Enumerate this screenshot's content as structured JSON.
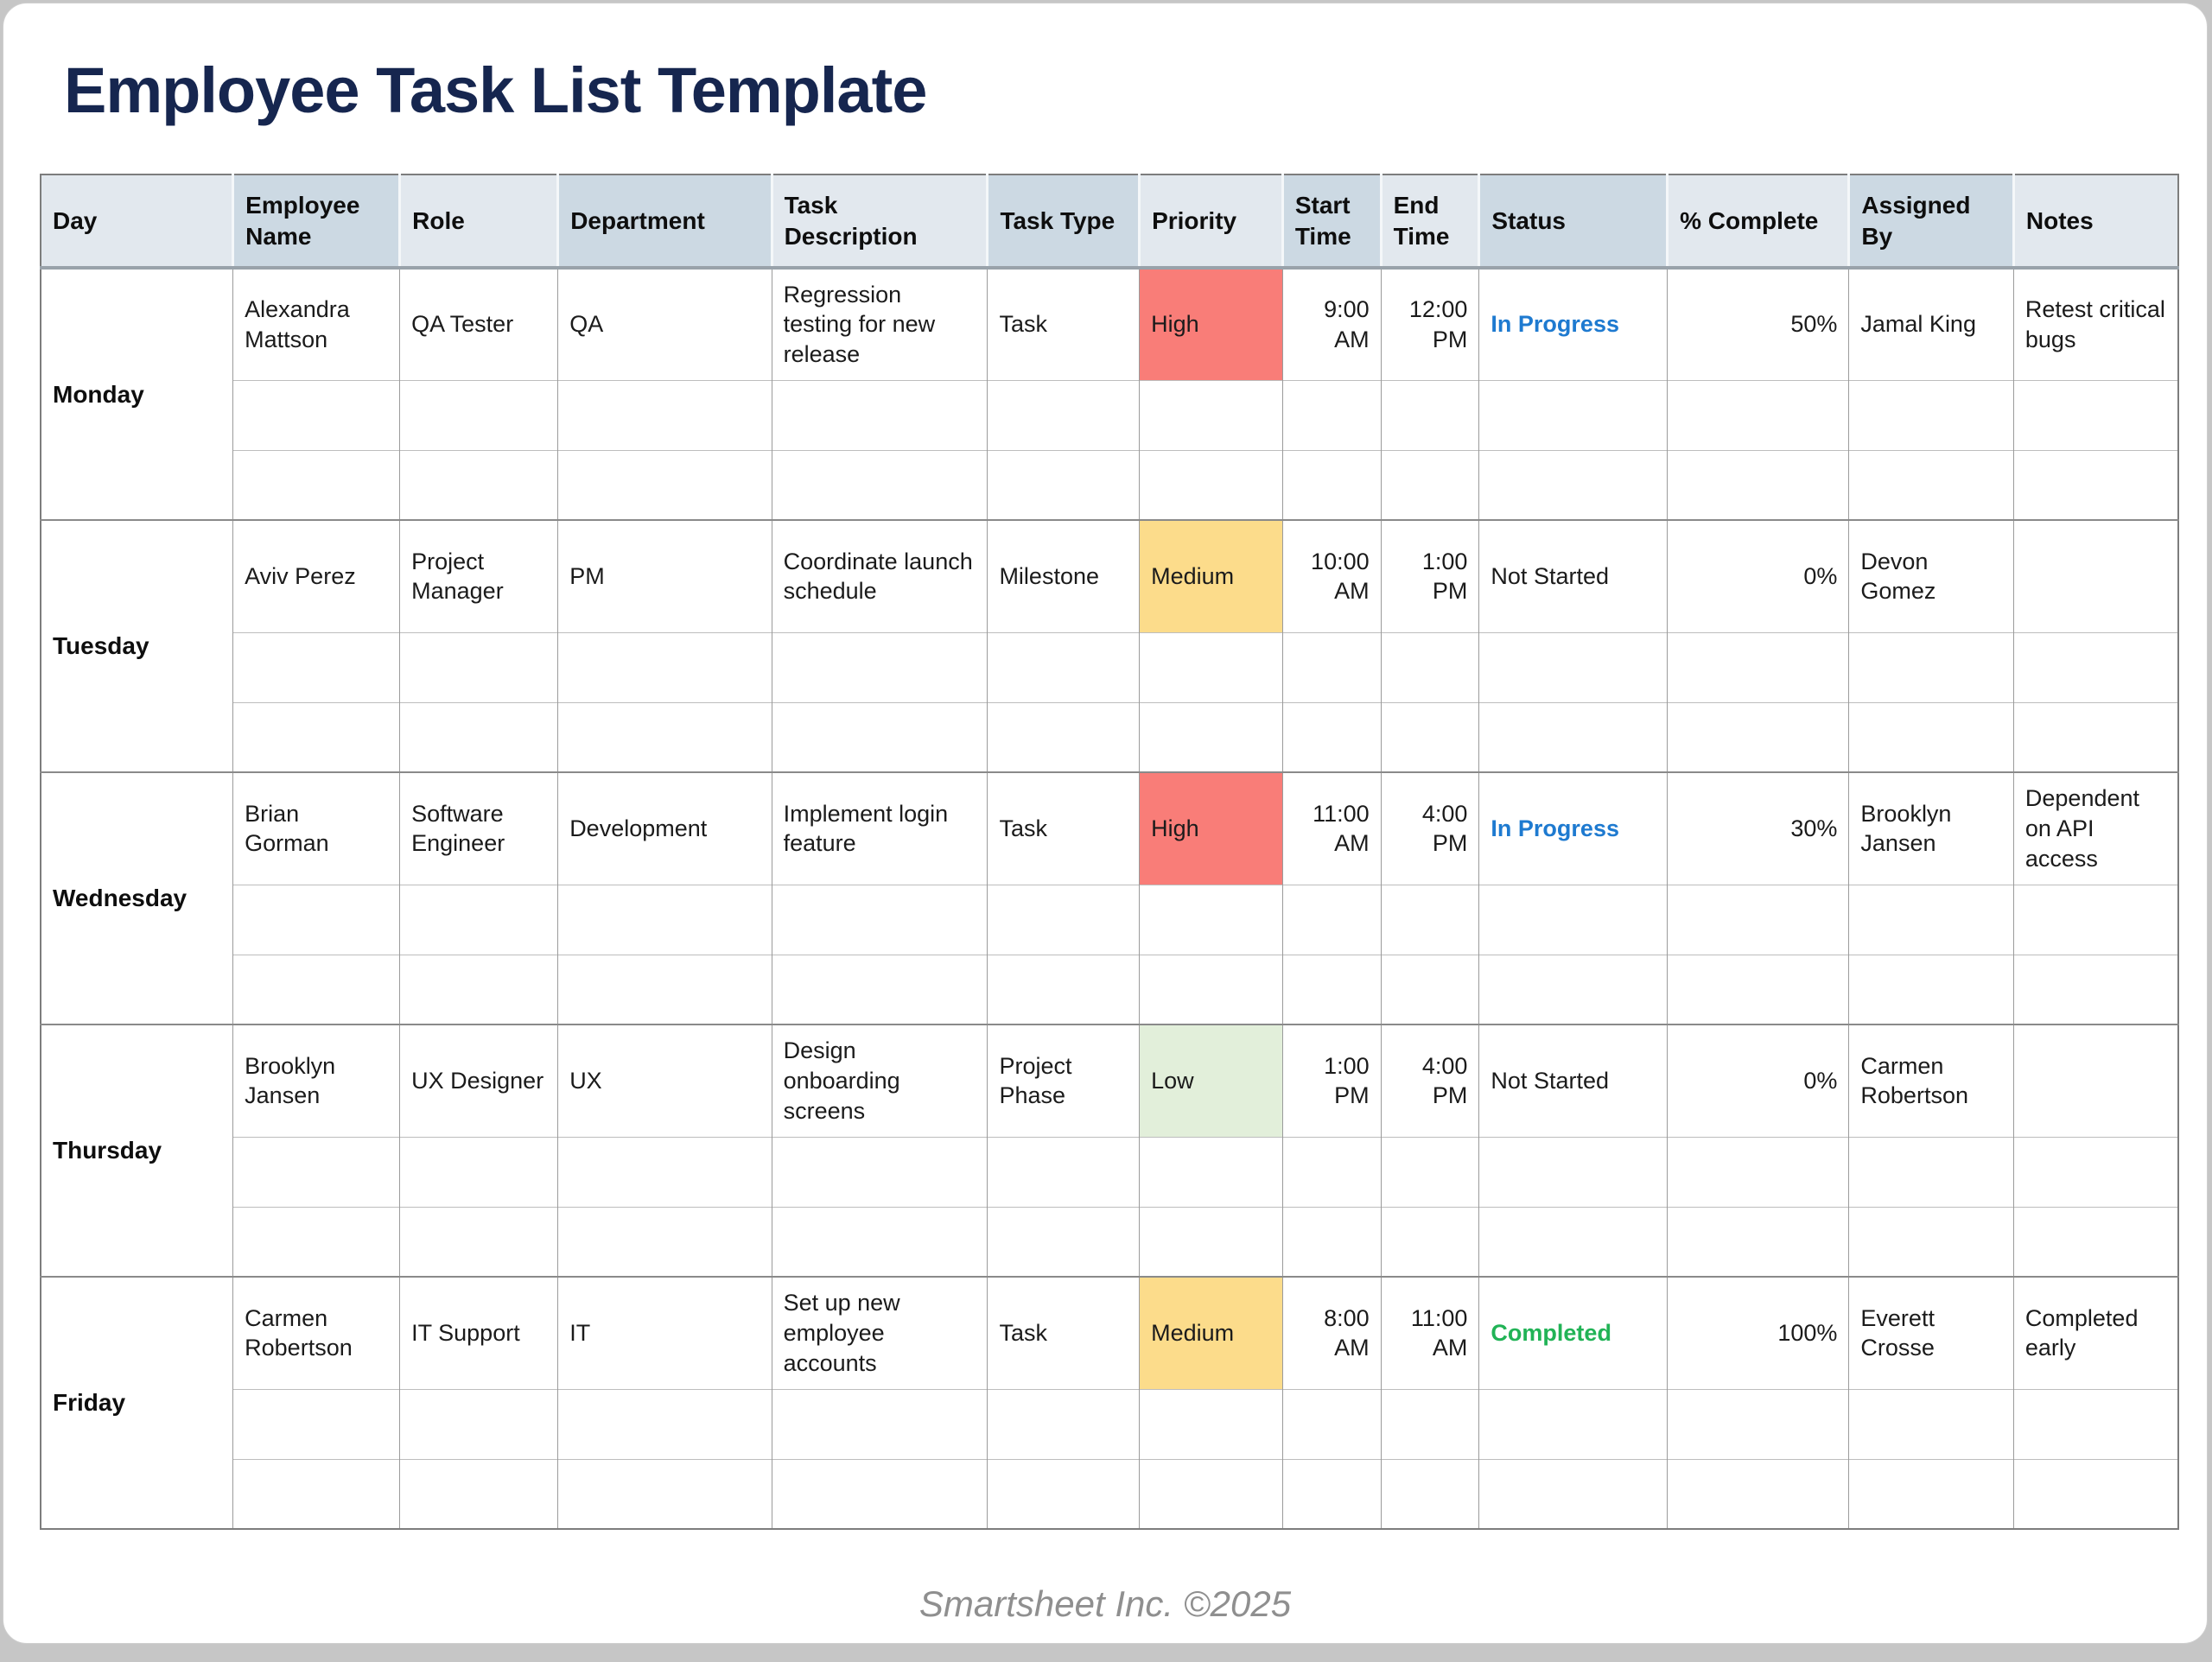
{
  "page_title": "Employee Task List Template",
  "footer": "Smartsheet Inc. ©2025",
  "colors": {
    "title": "#16264f",
    "header_light": "#e2e8ee",
    "header_dark": "#ccd9e3",
    "priority_high": "#f97d78",
    "priority_medium": "#fcdc8b",
    "priority_low": "#e2efda",
    "status_in_progress": "#1e7ad0",
    "status_completed": "#21b356"
  },
  "table": {
    "columns": [
      "Day",
      "Employee Name",
      "Role",
      "Department",
      "Task Description",
      "Task Type",
      "Priority",
      "Start Time",
      "End Time",
      "Status",
      "% Complete",
      "Assigned By",
      "Notes"
    ],
    "column_widths_pct": [
      9.0,
      7.8,
      7.4,
      10.0,
      10.1,
      7.1,
      6.7,
      4.6,
      4.6,
      8.8,
      8.5,
      7.7,
      7.7
    ],
    "groups": [
      {
        "day": "Monday",
        "empty_rows": 2,
        "task": {
          "employee_name": "Alexandra Mattson",
          "role": "QA Tester",
          "department": "QA",
          "task_description": "Regression testing for new release",
          "task_type": "Task",
          "priority": "High",
          "start_time": "9:00 AM",
          "end_time": "12:00 PM",
          "status": "In Progress",
          "percent_complete": "50%",
          "assigned_by": "Jamal King",
          "notes": "Retest critical bugs"
        }
      },
      {
        "day": "Tuesday",
        "empty_rows": 2,
        "task": {
          "employee_name": "Aviv Perez",
          "role": "Project Manager",
          "department": "PM",
          "task_description": "Coordinate launch schedule",
          "task_type": "Milestone",
          "priority": "Medium",
          "start_time": "10:00 AM",
          "end_time": "1:00 PM",
          "status": "Not Started",
          "percent_complete": "0%",
          "assigned_by": "Devon Gomez",
          "notes": ""
        }
      },
      {
        "day": "Wednesday",
        "empty_rows": 2,
        "task": {
          "employee_name": "Brian Gorman",
          "role": "Software Engineer",
          "department": "Development",
          "task_description": "Implement login feature",
          "task_type": "Task",
          "priority": "High",
          "start_time": "11:00 AM",
          "end_time": "4:00 PM",
          "status": "In Progress",
          "percent_complete": "30%",
          "assigned_by": "Brooklyn Jansen",
          "notes": "Dependent on API access"
        }
      },
      {
        "day": "Thursday",
        "empty_rows": 2,
        "task": {
          "employee_name": "Brooklyn Jansen",
          "role": "UX Designer",
          "department": "UX",
          "task_description": "Design onboarding screens",
          "task_type": "Project Phase",
          "priority": "Low",
          "start_time": "1:00 PM",
          "end_time": "4:00 PM",
          "status": "Not Started",
          "percent_complete": "0%",
          "assigned_by": "Carmen Robertson",
          "notes": ""
        }
      },
      {
        "day": "Friday",
        "empty_rows": 2,
        "task": {
          "employee_name": "Carmen Robertson",
          "role": "IT Support",
          "department": "IT",
          "task_description": "Set up new employee accounts",
          "task_type": "Task",
          "priority": "Medium",
          "start_time": "8:00 AM",
          "end_time": "11:00 AM",
          "status": "Completed",
          "percent_complete": "100%",
          "assigned_by": "Everett Crosse",
          "notes": "Completed early"
        }
      }
    ]
  }
}
